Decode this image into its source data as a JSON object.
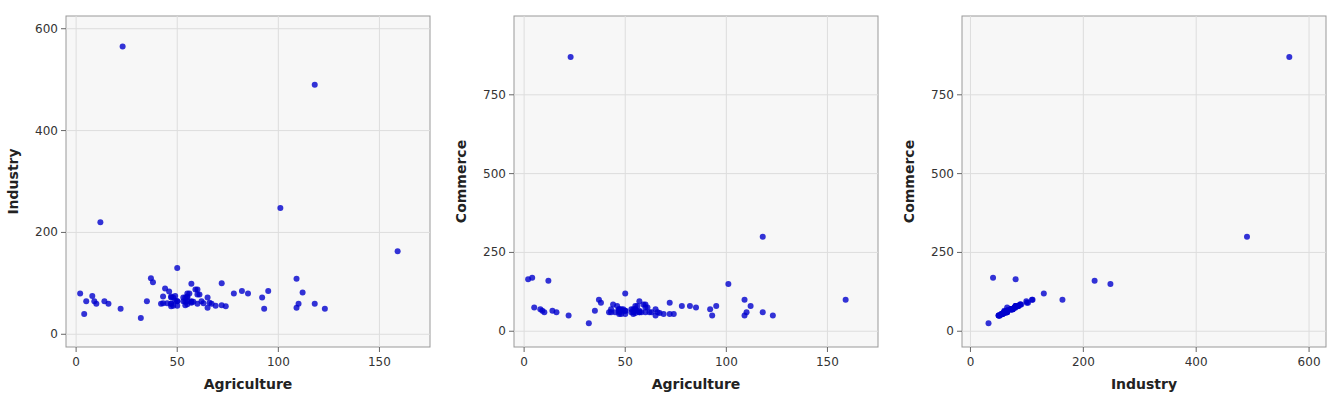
{
  "chart_data": [
    {
      "type": "scatter",
      "xlabel": "Agriculture",
      "ylabel": "Industry",
      "color": "#0000CD",
      "grid": true,
      "x": [
        2,
        4,
        5,
        8,
        9,
        10,
        12,
        14,
        16,
        22,
        23,
        32,
        35,
        37,
        38,
        42,
        43,
        43,
        44,
        45,
        46,
        47,
        47,
        47,
        47,
        47,
        48,
        48,
        49,
        49,
        50,
        50,
        50,
        50,
        53,
        53,
        54,
        54,
        54,
        55,
        55,
        55,
        55,
        55,
        56,
        57,
        57,
        57,
        57,
        58,
        59,
        60,
        60,
        60,
        61,
        62,
        63,
        65,
        65,
        66,
        67,
        69,
        72,
        72,
        74,
        78,
        82,
        85,
        92,
        93,
        95,
        101,
        109,
        109,
        110,
        112,
        118,
        118,
        123,
        159
      ],
      "values": [
        80,
        40,
        65,
        75,
        65,
        60,
        220,
        65,
        60,
        50,
        565,
        32,
        65,
        110,
        102,
        60,
        61,
        74,
        90,
        61,
        84,
        60,
        72,
        74,
        60,
        55,
        56,
        72,
        66,
        75,
        65,
        56,
        65,
        130,
        72,
        65,
        64,
        57,
        72,
        74,
        59,
        72,
        80,
        65,
        80,
        65,
        62,
        64,
        99,
        64,
        88,
        60,
        88,
        78,
        78,
        65,
        61,
        52,
        72,
        62,
        60,
        56,
        100,
        57,
        55,
        80,
        85,
        80,
        72,
        50,
        85,
        248,
        52,
        109,
        60,
        82,
        60,
        490,
        50,
        163
      ],
      "xlim": [
        -5,
        175
      ],
      "ylim": [
        -25,
        625
      ],
      "xticks": [
        0,
        50,
        100,
        150
      ],
      "yticks": [
        0,
        200,
        400,
        600
      ]
    },
    {
      "type": "scatter",
      "xlabel": "Agriculture",
      "ylabel": "Commerce",
      "color": "#0000CD",
      "grid": true,
      "x": [
        2,
        4,
        5,
        8,
        9,
        10,
        12,
        14,
        16,
        22,
        23,
        32,
        35,
        37,
        38,
        42,
        43,
        43,
        44,
        45,
        46,
        47,
        47,
        47,
        47,
        47,
        48,
        48,
        49,
        49,
        50,
        50,
        50,
        50,
        53,
        53,
        54,
        54,
        54,
        55,
        55,
        55,
        55,
        55,
        56,
        57,
        57,
        57,
        57,
        58,
        59,
        60,
        60,
        60,
        61,
        62,
        63,
        65,
        65,
        66,
        67,
        69,
        72,
        72,
        74,
        78,
        82,
        85,
        92,
        93,
        95,
        101,
        109,
        109,
        110,
        112,
        118,
        118,
        123,
        159
      ],
      "values": [
        165,
        170,
        75,
        70,
        65,
        60,
        160,
        65,
        60,
        50,
        870,
        25,
        65,
        100,
        90,
        60,
        60,
        70,
        85,
        60,
        80,
        60,
        70,
        70,
        65,
        55,
        55,
        70,
        65,
        70,
        65,
        55,
        65,
        120,
        70,
        60,
        60,
        55,
        70,
        70,
        58,
        70,
        80,
        65,
        80,
        65,
        60,
        60,
        95,
        60,
        85,
        60,
        85,
        75,
        75,
        60,
        60,
        50,
        70,
        60,
        58,
        55,
        90,
        55,
        55,
        80,
        80,
        75,
        70,
        50,
        80,
        150,
        50,
        100,
        60,
        80,
        60,
        300,
        50,
        100
      ],
      "xlim": [
        -5,
        175
      ],
      "ylim": [
        -50,
        1000
      ],
      "xticks": [
        0,
        50,
        100,
        150
      ],
      "yticks": [
        0,
        250,
        500,
        750
      ]
    },
    {
      "type": "scatter",
      "xlabel": "Industry",
      "ylabel": "Commerce",
      "color": "#0000CD",
      "grid": true,
      "x": [
        80,
        40,
        65,
        75,
        65,
        60,
        220,
        65,
        60,
        50,
        565,
        32,
        65,
        110,
        102,
        60,
        61,
        74,
        90,
        61,
        84,
        60,
        72,
        74,
        60,
        55,
        56,
        72,
        66,
        75,
        65,
        56,
        65,
        130,
        72,
        65,
        64,
        57,
        72,
        74,
        59,
        72,
        80,
        65,
        80,
        65,
        62,
        64,
        99,
        64,
        88,
        60,
        88,
        78,
        78,
        65,
        61,
        52,
        72,
        62,
        60,
        56,
        100,
        57,
        55,
        80,
        85,
        80,
        72,
        50,
        85,
        248,
        52,
        109,
        60,
        82,
        60,
        490,
        50,
        163
      ],
      "values": [
        165,
        170,
        75,
        70,
        65,
        60,
        160,
        65,
        60,
        50,
        870,
        25,
        65,
        100,
        90,
        60,
        60,
        70,
        85,
        60,
        80,
        60,
        70,
        70,
        65,
        55,
        55,
        70,
        65,
        70,
        65,
        55,
        65,
        120,
        70,
        60,
        60,
        55,
        70,
        70,
        58,
        70,
        80,
        65,
        80,
        65,
        60,
        60,
        95,
        60,
        85,
        60,
        85,
        75,
        75,
        60,
        60,
        50,
        70,
        60,
        58,
        55,
        90,
        55,
        55,
        80,
        80,
        75,
        70,
        50,
        80,
        150,
        50,
        100,
        60,
        80,
        60,
        300,
        50,
        100
      ],
      "xlim": [
        -15,
        630
      ],
      "ylim": [
        -50,
        1000
      ],
      "xticks": [
        0,
        200,
        400,
        600
      ],
      "yticks": [
        0,
        250,
        500,
        750
      ]
    }
  ]
}
